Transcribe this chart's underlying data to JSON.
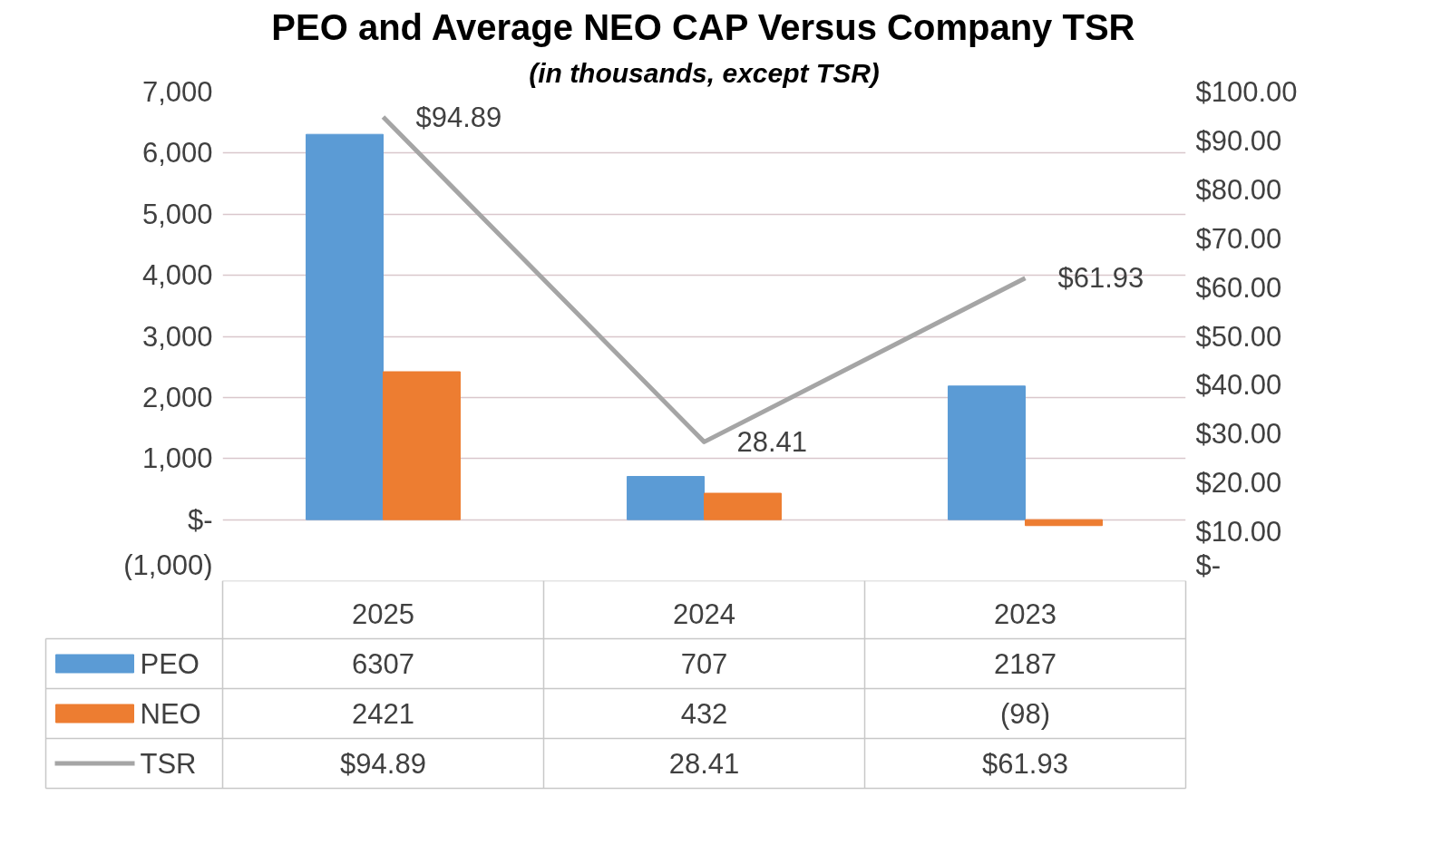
{
  "chart_data": {
    "type": "bar",
    "title": "PEO and Average NEO CAP Versus Company TSR",
    "subtitle": "(in thousands, except TSR)",
    "categories": [
      "2025",
      "2024",
      "2023"
    ],
    "series": [
      {
        "name": "PEO",
        "color": "#5b9bd5",
        "values": [
          6307,
          707,
          2187
        ],
        "value_labels": [
          "6307",
          "707",
          "2187"
        ]
      },
      {
        "name": "NEO",
        "color": "#ed7d31",
        "values": [
          2421,
          432,
          -98
        ],
        "value_labels": [
          "2421",
          "432",
          "(98)"
        ]
      },
      {
        "name": "TSR",
        "type": "line",
        "axis": "y2",
        "color": "#a5a5a5",
        "values": [
          94.89,
          28.41,
          61.93
        ],
        "value_labels": [
          "$94.89",
          "28.41",
          "$61.93"
        ]
      }
    ],
    "ylim": [
      -1000,
      7000
    ],
    "yticks": [
      {
        "value": -1000,
        "label": "(1,000)"
      },
      {
        "value": 0,
        "label": "$-"
      },
      {
        "value": 1000,
        "label": "1,000"
      },
      {
        "value": 2000,
        "label": "2,000"
      },
      {
        "value": 3000,
        "label": "3,000"
      },
      {
        "value": 4000,
        "label": "4,000"
      },
      {
        "value": 5000,
        "label": "5,000"
      },
      {
        "value": 6000,
        "label": "6,000"
      },
      {
        "value": 7000,
        "label": "7,000"
      }
    ],
    "y2lim": [
      0,
      100
    ],
    "y2ticks": [
      {
        "value": 0,
        "label": "$-"
      },
      {
        "value": 10,
        "label": "$10.00"
      },
      {
        "value": 20,
        "label": "$20.00"
      },
      {
        "value": 30,
        "label": "$30.00"
      },
      {
        "value": 40,
        "label": "$40.00"
      },
      {
        "value": 50,
        "label": "$50.00"
      },
      {
        "value": 60,
        "label": "$60.00"
      },
      {
        "value": 70,
        "label": "$70.00"
      },
      {
        "value": 80,
        "label": "$80.00"
      },
      {
        "value": 90,
        "label": "$90.00"
      },
      {
        "value": 100,
        "label": "$100.00"
      }
    ],
    "grid": "y",
    "legend": "bottom"
  }
}
